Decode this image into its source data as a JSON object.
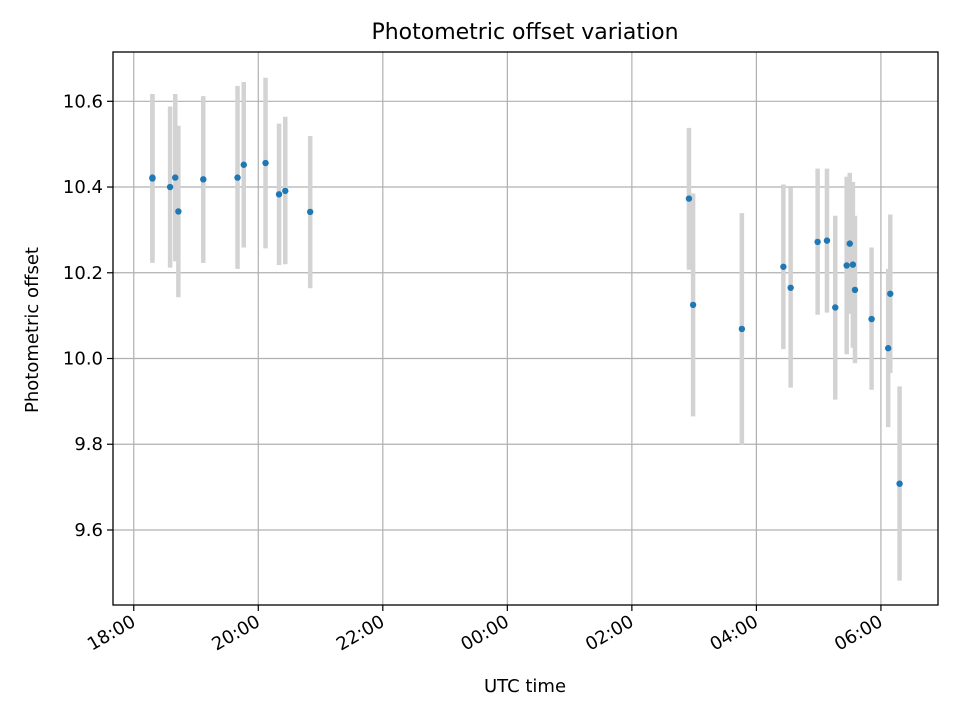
{
  "chart_data": {
    "type": "scatter",
    "title": "Photometric offset variation",
    "xlabel": "UTC time",
    "ylabel": "Photometric offset",
    "xlim": [
      "17:40",
      "30:55"
    ],
    "ylim": [
      9.425,
      10.715
    ],
    "grid": true,
    "colors": {
      "points": "#1f77b4",
      "errorbars": "#d3d3d3",
      "grid": "#b0b0b0",
      "axes": "#000000"
    },
    "x_ticks": [
      {
        "t": "18:00",
        "label": "18:00"
      },
      {
        "t": "20:00",
        "label": "20:00"
      },
      {
        "t": "22:00",
        "label": "22:00"
      },
      {
        "t": "24:00",
        "label": "00:00"
      },
      {
        "t": "26:00",
        "label": "02:00"
      },
      {
        "t": "28:00",
        "label": "04:00"
      },
      {
        "t": "30:00",
        "label": "06:00"
      }
    ],
    "y_ticks": [
      {
        "v": 9.6,
        "label": "9.6"
      },
      {
        "v": 9.8,
        "label": "9.8"
      },
      {
        "v": 10.0,
        "label": "10.0"
      },
      {
        "v": 10.2,
        "label": "10.2"
      },
      {
        "v": 10.4,
        "label": "10.4"
      },
      {
        "v": 10.6,
        "label": "10.6"
      }
    ],
    "points": [
      {
        "t": "18:18",
        "y": 10.42,
        "lo": 10.223,
        "hi": 10.617
      },
      {
        "t": "18:18",
        "y": 10.422,
        "lo": 10.227,
        "hi": 10.617
      },
      {
        "t": "18:35",
        "y": 10.4,
        "lo": 10.212,
        "hi": 10.588
      },
      {
        "t": "18:40",
        "y": 10.422,
        "lo": 10.227,
        "hi": 10.617
      },
      {
        "t": "18:43",
        "y": 10.343,
        "lo": 10.143,
        "hi": 10.543
      },
      {
        "t": "19:07",
        "y": 10.418,
        "lo": 10.223,
        "hi": 10.612
      },
      {
        "t": "19:40",
        "y": 10.422,
        "lo": 10.209,
        "hi": 10.636
      },
      {
        "t": "19:46",
        "y": 10.452,
        "lo": 10.259,
        "hi": 10.645
      },
      {
        "t": "20:07",
        "y": 10.456,
        "lo": 10.257,
        "hi": 10.655
      },
      {
        "t": "20:20",
        "y": 10.383,
        "lo": 10.218,
        "hi": 10.548
      },
      {
        "t": "20:26",
        "y": 10.391,
        "lo": 10.22,
        "hi": 10.564
      },
      {
        "t": "20:50",
        "y": 10.342,
        "lo": 10.164,
        "hi": 10.519
      },
      {
        "t": "26:55",
        "y": 10.373,
        "lo": 10.207,
        "hi": 10.538
      },
      {
        "t": "26:59",
        "y": 10.125,
        "lo": 9.865,
        "hi": 10.385
      },
      {
        "t": "27:46",
        "y": 10.069,
        "lo": 9.799,
        "hi": 10.339
      },
      {
        "t": "28:26",
        "y": 10.214,
        "lo": 10.022,
        "hi": 10.406
      },
      {
        "t": "28:33",
        "y": 10.165,
        "lo": 9.932,
        "hi": 10.398
      },
      {
        "t": "28:59",
        "y": 10.272,
        "lo": 10.102,
        "hi": 10.443
      },
      {
        "t": "29:08",
        "y": 10.275,
        "lo": 10.107,
        "hi": 10.443
      },
      {
        "t": "29:16",
        "y": 10.119,
        "lo": 9.904,
        "hi": 10.333
      },
      {
        "t": "29:27",
        "y": 10.217,
        "lo": 10.01,
        "hi": 10.424
      },
      {
        "t": "29:30",
        "y": 10.268,
        "lo": 10.104,
        "hi": 10.433
      },
      {
        "t": "29:33",
        "y": 10.219,
        "lo": 10.025,
        "hi": 10.412
      },
      {
        "t": "29:35",
        "y": 10.16,
        "lo": 9.989,
        "hi": 10.333
      },
      {
        "t": "29:51",
        "y": 10.092,
        "lo": 9.927,
        "hi": 10.259
      },
      {
        "t": "30:07",
        "y": 10.024,
        "lo": 9.84,
        "hi": 10.209
      },
      {
        "t": "30:09",
        "y": 10.151,
        "lo": 9.966,
        "hi": 10.336
      },
      {
        "t": "30:18",
        "y": 9.708,
        "lo": 9.482,
        "hi": 9.935
      }
    ]
  }
}
